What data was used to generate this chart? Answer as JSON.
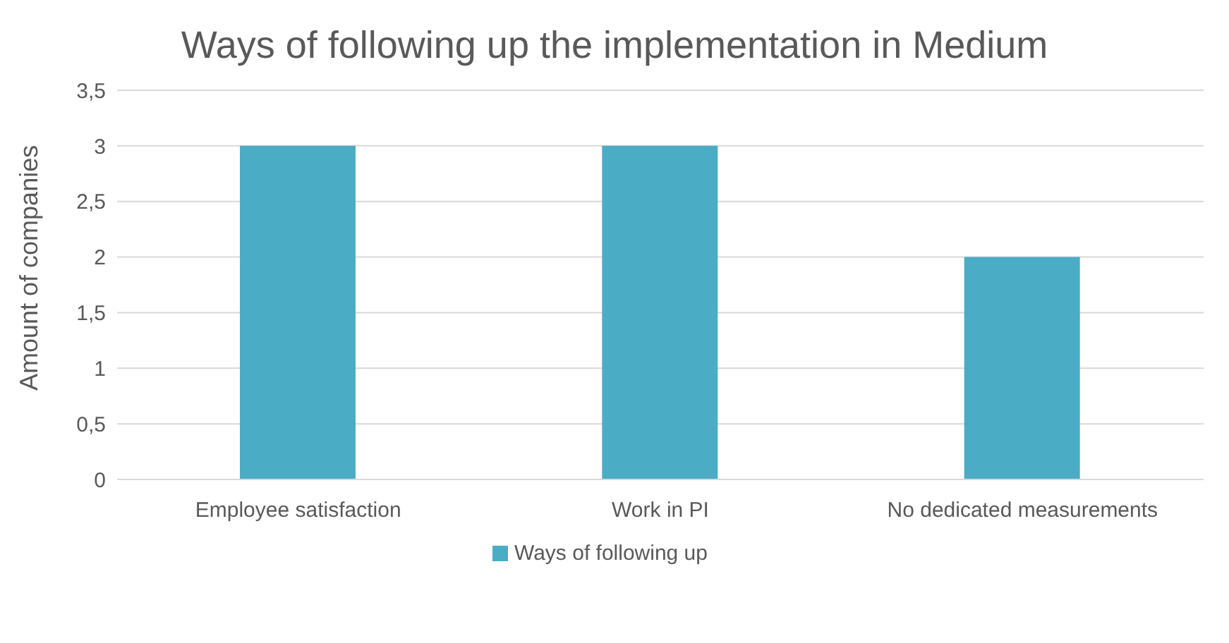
{
  "chart_data": {
    "type": "bar",
    "title": "Ways of following up the implementation in Medium",
    "ylabel": "Amount of companies",
    "categories": [
      "Employee satisfaction",
      "Work in PI",
      "No dedicated measurements"
    ],
    "series": [
      {
        "name": "Ways of following up",
        "color": "#4bacc6",
        "values": [
          3,
          3,
          2
        ]
      }
    ],
    "ylim": [
      0,
      3.5
    ],
    "yticks": [
      0,
      {
        "value": 0.5,
        "label": "0,5"
      },
      1,
      {
        "value": 1.5,
        "label": "1,5"
      },
      2,
      {
        "value": 2.5,
        "label": "2,5"
      },
      3,
      {
        "value": 3.5,
        "label": "3,5"
      }
    ],
    "grid": "y",
    "legend": "bottom"
  }
}
